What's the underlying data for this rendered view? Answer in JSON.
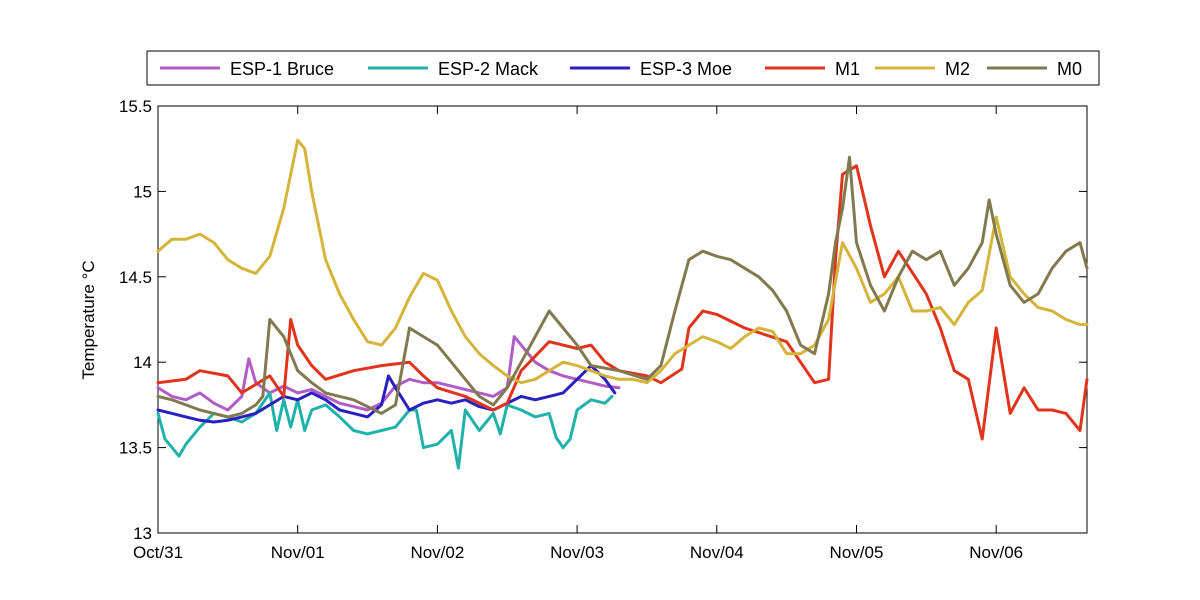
{
  "chart_data": {
    "type": "line",
    "title": "",
    "xlabel": "",
    "ylabel": "Temperature °C",
    "xlim": [
      0,
      6.65
    ],
    "ylim": [
      13,
      15.5
    ],
    "yticks": [
      13,
      13.5,
      14,
      14.5,
      15,
      15.5
    ],
    "ytick_labels": [
      "13",
      "13.5",
      "14",
      "14.5",
      "15",
      "15.5"
    ],
    "xticks": [
      0,
      1,
      2,
      3,
      4,
      5,
      6
    ],
    "xtick_labels": [
      "Oct/31",
      "Nov/01",
      "Nov/02",
      "Nov/03",
      "Nov/04",
      "Nov/05",
      "Nov/06"
    ],
    "legend_position": "top",
    "series": [
      {
        "name": "ESP-1 Bruce",
        "color": "#b25cc5",
        "x": [
          0,
          0.1,
          0.2,
          0.3,
          0.4,
          0.5,
          0.6,
          0.65,
          0.7,
          0.8,
          0.9,
          1.0,
          1.1,
          1.2,
          1.3,
          1.4,
          1.5,
          1.6,
          1.7,
          1.8,
          1.9,
          2.0,
          2.1,
          2.2,
          2.3,
          2.4,
          2.5,
          2.55,
          2.6,
          2.7,
          2.8,
          2.9,
          3.0,
          3.1,
          3.2,
          3.3
        ],
        "values": [
          13.85,
          13.8,
          13.78,
          13.82,
          13.76,
          13.72,
          13.8,
          14.02,
          13.88,
          13.82,
          13.86,
          13.82,
          13.84,
          13.8,
          13.76,
          13.74,
          13.72,
          13.76,
          13.86,
          13.9,
          13.88,
          13.88,
          13.86,
          13.84,
          13.82,
          13.8,
          13.85,
          14.15,
          14.1,
          14.0,
          13.95,
          13.92,
          13.9,
          13.88,
          13.86,
          13.85
        ]
      },
      {
        "name": "ESP-2 Mack",
        "color": "#20b2aa",
        "x": [
          0,
          0.05,
          0.1,
          0.15,
          0.2,
          0.3,
          0.4,
          0.5,
          0.6,
          0.7,
          0.8,
          0.85,
          0.9,
          0.95,
          1.0,
          1.05,
          1.1,
          1.2,
          1.3,
          1.4,
          1.5,
          1.6,
          1.7,
          1.8,
          1.85,
          1.9,
          2.0,
          2.1,
          2.15,
          2.2,
          2.3,
          2.4,
          2.45,
          2.5,
          2.6,
          2.7,
          2.8,
          2.85,
          2.9,
          2.95,
          3.0,
          3.1,
          3.2,
          3.25
        ],
        "values": [
          13.7,
          13.55,
          13.5,
          13.45,
          13.52,
          13.62,
          13.7,
          13.68,
          13.65,
          13.7,
          13.82,
          13.6,
          13.78,
          13.62,
          13.78,
          13.6,
          13.72,
          13.75,
          13.68,
          13.6,
          13.58,
          13.6,
          13.62,
          13.72,
          13.72,
          13.5,
          13.52,
          13.6,
          13.38,
          13.72,
          13.6,
          13.7,
          13.58,
          13.75,
          13.72,
          13.68,
          13.7,
          13.56,
          13.5,
          13.55,
          13.72,
          13.78,
          13.76,
          13.8
        ]
      },
      {
        "name": "ESP-3 Moe",
        "color": "#2a1fbf",
        "x": [
          0,
          0.1,
          0.2,
          0.3,
          0.4,
          0.5,
          0.6,
          0.7,
          0.8,
          0.9,
          1.0,
          1.1,
          1.2,
          1.3,
          1.4,
          1.5,
          1.6,
          1.65,
          1.7,
          1.8,
          1.9,
          2.0,
          2.1,
          2.2,
          2.3,
          2.4,
          2.5,
          2.6,
          2.7,
          2.8,
          2.9,
          3.0,
          3.1,
          3.2,
          3.27
        ],
        "values": [
          13.72,
          13.7,
          13.68,
          13.66,
          13.65,
          13.66,
          13.68,
          13.7,
          13.75,
          13.8,
          13.78,
          13.82,
          13.78,
          13.72,
          13.7,
          13.68,
          13.75,
          13.92,
          13.85,
          13.72,
          13.76,
          13.78,
          13.76,
          13.78,
          13.74,
          13.72,
          13.76,
          13.8,
          13.78,
          13.8,
          13.82,
          13.9,
          13.98,
          13.9,
          13.82
        ]
      },
      {
        "name": "M1",
        "color": "#e0341c",
        "x": [
          0,
          0.2,
          0.3,
          0.5,
          0.6,
          0.8,
          0.9,
          0.95,
          1.0,
          1.1,
          1.2,
          1.4,
          1.6,
          1.8,
          1.9,
          2.0,
          2.2,
          2.4,
          2.5,
          2.6,
          2.8,
          3.0,
          3.1,
          3.2,
          3.3,
          3.5,
          3.6,
          3.75,
          3.8,
          3.9,
          4.0,
          4.2,
          4.5,
          4.7,
          4.8,
          4.85,
          4.9,
          5.0,
          5.1,
          5.2,
          5.3,
          5.5,
          5.6,
          5.7,
          5.8,
          5.9,
          6.0,
          6.1,
          6.2,
          6.3,
          6.4,
          6.5,
          6.6,
          6.65
        ],
        "values": [
          13.88,
          13.9,
          13.95,
          13.92,
          13.82,
          13.92,
          13.8,
          14.25,
          14.1,
          13.98,
          13.9,
          13.95,
          13.98,
          14.0,
          13.92,
          13.85,
          13.8,
          13.72,
          13.76,
          13.95,
          14.12,
          14.08,
          14.1,
          14.0,
          13.95,
          13.92,
          13.88,
          13.96,
          14.2,
          14.3,
          14.28,
          14.2,
          14.12,
          13.88,
          13.9,
          14.6,
          15.1,
          15.15,
          14.8,
          14.5,
          14.65,
          14.4,
          14.2,
          13.95,
          13.9,
          13.55,
          14.2,
          13.7,
          13.85,
          13.72,
          13.72,
          13.7,
          13.6,
          13.9
        ]
      },
      {
        "name": "M2",
        "color": "#d4b43a",
        "x": [
          0,
          0.1,
          0.2,
          0.3,
          0.4,
          0.5,
          0.6,
          0.7,
          0.8,
          0.9,
          0.95,
          1.0,
          1.05,
          1.1,
          1.2,
          1.3,
          1.4,
          1.5,
          1.6,
          1.7,
          1.8,
          1.9,
          2.0,
          2.1,
          2.2,
          2.3,
          2.4,
          2.5,
          2.6,
          2.7,
          2.8,
          2.9,
          3.0,
          3.1,
          3.2,
          3.3,
          3.4,
          3.5,
          3.6,
          3.7,
          3.8,
          3.9,
          4.0,
          4.1,
          4.2,
          4.3,
          4.4,
          4.5,
          4.6,
          4.7,
          4.8,
          4.9,
          5.0,
          5.1,
          5.2,
          5.3,
          5.4,
          5.5,
          5.6,
          5.7,
          5.8,
          5.9,
          6.0,
          6.1,
          6.2,
          6.3,
          6.4,
          6.5,
          6.6,
          6.65
        ],
        "values": [
          14.65,
          14.72,
          14.72,
          14.75,
          14.7,
          14.6,
          14.55,
          14.52,
          14.62,
          14.9,
          15.1,
          15.3,
          15.25,
          15.0,
          14.6,
          14.4,
          14.25,
          14.12,
          14.1,
          14.2,
          14.38,
          14.52,
          14.48,
          14.3,
          14.15,
          14.05,
          13.98,
          13.92,
          13.88,
          13.9,
          13.95,
          14.0,
          13.98,
          13.95,
          13.92,
          13.9,
          13.9,
          13.88,
          13.95,
          14.05,
          14.1,
          14.15,
          14.12,
          14.08,
          14.15,
          14.2,
          14.18,
          14.05,
          14.05,
          14.1,
          14.25,
          14.7,
          14.55,
          14.35,
          14.4,
          14.5,
          14.3,
          14.3,
          14.32,
          14.22,
          14.35,
          14.42,
          14.85,
          14.5,
          14.4,
          14.32,
          14.3,
          14.25,
          14.22,
          14.22
        ]
      },
      {
        "name": "M0",
        "color": "#807a4e",
        "x": [
          0,
          0.1,
          0.2,
          0.3,
          0.4,
          0.5,
          0.6,
          0.7,
          0.75,
          0.8,
          0.9,
          1.0,
          1.1,
          1.2,
          1.3,
          1.4,
          1.6,
          1.7,
          1.8,
          1.9,
          2.0,
          2.1,
          2.2,
          2.3,
          2.4,
          2.5,
          2.6,
          2.7,
          2.8,
          2.9,
          3.0,
          3.1,
          3.3,
          3.5,
          3.6,
          3.7,
          3.8,
          3.9,
          4.0,
          4.1,
          4.2,
          4.3,
          4.4,
          4.5,
          4.6,
          4.7,
          4.8,
          4.85,
          4.9,
          4.95,
          5.0,
          5.1,
          5.2,
          5.3,
          5.4,
          5.5,
          5.6,
          5.7,
          5.8,
          5.9,
          5.95,
          6.0,
          6.1,
          6.2,
          6.3,
          6.4,
          6.5,
          6.6,
          6.65
        ],
        "values": [
          13.8,
          13.78,
          13.75,
          13.72,
          13.7,
          13.68,
          13.7,
          13.75,
          13.8,
          14.25,
          14.15,
          13.95,
          13.88,
          13.82,
          13.8,
          13.78,
          13.7,
          13.75,
          14.2,
          14.15,
          14.1,
          14.0,
          13.9,
          13.8,
          13.75,
          13.85,
          14.0,
          14.15,
          14.3,
          14.2,
          14.1,
          13.98,
          13.95,
          13.9,
          13.98,
          14.3,
          14.6,
          14.65,
          14.62,
          14.6,
          14.55,
          14.5,
          14.42,
          14.3,
          14.1,
          14.05,
          14.4,
          14.7,
          14.9,
          15.2,
          14.7,
          14.45,
          14.3,
          14.5,
          14.65,
          14.6,
          14.65,
          14.45,
          14.55,
          14.7,
          14.95,
          14.75,
          14.45,
          14.35,
          14.4,
          14.55,
          14.65,
          14.7,
          14.55
        ]
      }
    ]
  }
}
